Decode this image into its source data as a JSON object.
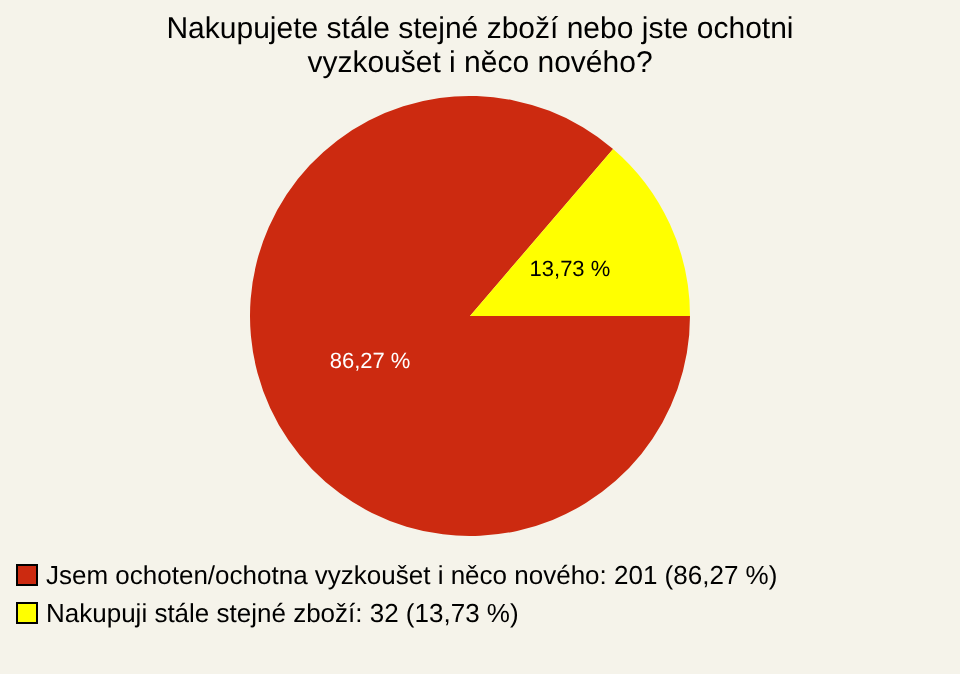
{
  "chart_data": {
    "type": "pie",
    "title": "Nakupujete stále stejné zboží nebo jste ochotni vyzkoušet i něco nového?",
    "categories": [
      "Jsem ochoten/ochotna vyzkoušet i něco nového: 201 (86,27 %)",
      "Nakupuji stále stejné zboží: 32 (13,73 %)"
    ],
    "values": [
      86.27,
      13.73
    ],
    "value_labels": [
      "86,27 %",
      "13,73 %"
    ],
    "colors": [
      "#cc2a10",
      "#ffff00"
    ],
    "legend": "bottom left"
  }
}
